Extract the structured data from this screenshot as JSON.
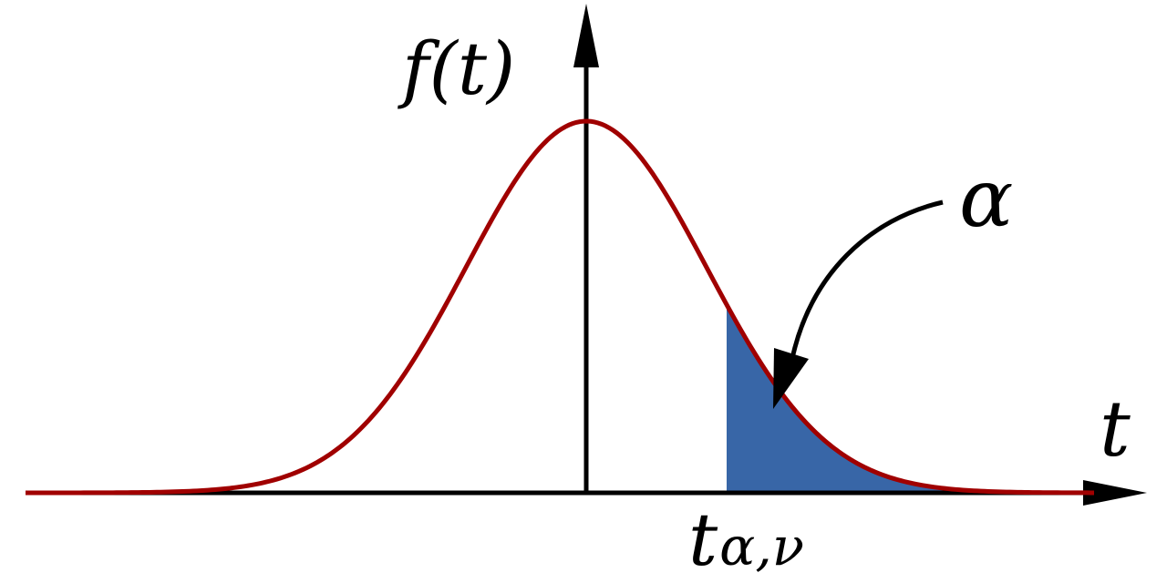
{
  "labels": {
    "y_axis": "f(t)",
    "x_axis": "t",
    "alpha": "α",
    "critical_value_main": "t",
    "critical_value_sub": "α,ν"
  },
  "colors": {
    "curve": "#a00000",
    "shaded_region": "#3866a7",
    "axes": "#000000",
    "background": "#ffffff"
  }
}
